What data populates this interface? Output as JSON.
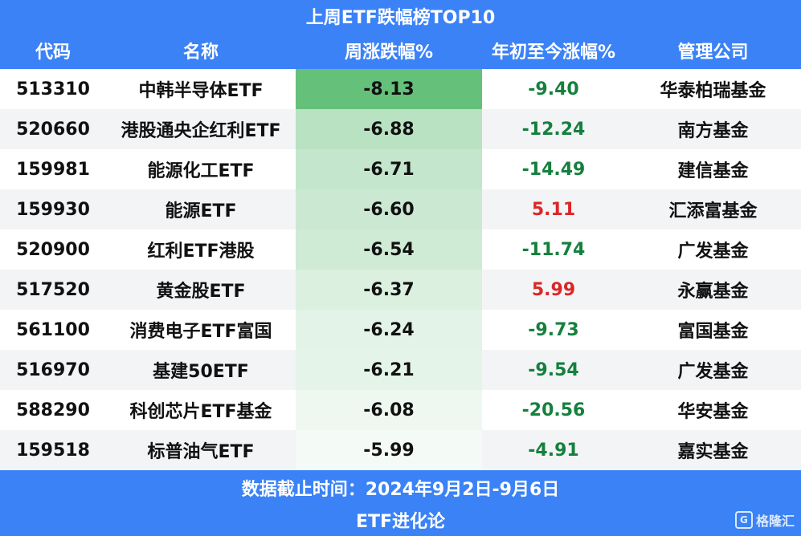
{
  "title": "上周ETF跌幅榜TOP10",
  "headers": [
    "代码",
    "名称",
    "周涨跌幅%",
    "年初至今涨幅%",
    "管理公司"
  ],
  "rows": [
    {
      "code": "513310",
      "name": "中韩半导体ETF",
      "week": "-8.13",
      "ytd": "-9.40",
      "manager": "华泰柏瑞基金"
    },
    {
      "code": "520660",
      "name": "港股通央企红利ETF",
      "week": "-6.88",
      "ytd": "-12.24",
      "manager": "南方基金"
    },
    {
      "code": "159981",
      "name": "能源化工ETF",
      "week": "-6.71",
      "ytd": "-14.49",
      "manager": "建信基金"
    },
    {
      "code": "159930",
      "name": "能源ETF",
      "week": "-6.60",
      "ytd": "5.11",
      "manager": "汇添富基金"
    },
    {
      "code": "520900",
      "name": "红利ETF港股",
      "week": "-6.54",
      "ytd": "-11.74",
      "manager": "广发基金"
    },
    {
      "code": "517520",
      "name": "黄金股ETF",
      "week": "-6.37",
      "ytd": "5.99",
      "manager": "永赢基金"
    },
    {
      "code": "561100",
      "name": "消费电子ETF富国",
      "week": "-6.24",
      "ytd": "-9.73",
      "manager": "富国基金"
    },
    {
      "code": "516970",
      "name": "基建50ETF",
      "week": "-6.21",
      "ytd": "-9.54",
      "manager": "广发基金"
    },
    {
      "code": "588290",
      "name": "科创芯片ETF基金",
      "week": "-6.08",
      "ytd": "-20.56",
      "manager": "华安基金"
    },
    {
      "code": "159518",
      "name": "标普油气ETF",
      "week": "-5.99",
      "ytd": "-4.91",
      "manager": "嘉实基金"
    }
  ],
  "footer": {
    "date_line": "数据截止时间：2024年9月2日-9月6日",
    "source": "ETF进化论"
  },
  "watermark": {
    "icon": "G",
    "text": "格隆汇"
  },
  "colors": {
    "header_bg": "#3b82f6",
    "negative": "#15803d",
    "positive": "#dc2626",
    "heat_max": "#65c07a",
    "heat_min": "#f4faf5"
  }
}
